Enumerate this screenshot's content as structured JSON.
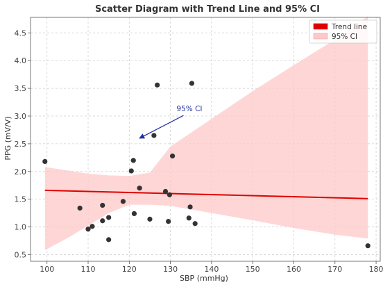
{
  "chart_data": {
    "type": "scatter",
    "title": "Scatter Diagram with Trend Line and 95% CI",
    "xlabel": "SBP (mmHg)",
    "ylabel": "PPG (mV/V)",
    "xlim": [
      96,
      181
    ],
    "ylim": [
      0.38,
      4.78
    ],
    "xticks": [
      100,
      110,
      120,
      130,
      140,
      150,
      160,
      170,
      180
    ],
    "yticks": [
      0.5,
      1.0,
      1.5,
      2.0,
      2.5,
      3.0,
      3.5,
      4.0,
      4.5
    ],
    "grid": true,
    "legend": {
      "placement": "top-right",
      "entries": [
        {
          "label": "Trend line",
          "color": "#e00000"
        },
        {
          "label": "95% CI",
          "color": "#ffc8c8"
        }
      ]
    },
    "points": {
      "color": "#333333",
      "x": [
        99.5,
        108,
        110,
        111,
        113.5,
        113.5,
        115,
        115,
        118.5,
        120.5,
        121,
        121.2,
        122.5,
        125,
        126,
        126.8,
        128.8,
        129.5,
        129.8,
        130.5,
        134.5,
        134.8,
        135.2,
        136,
        178
      ],
      "y": [
        2.18,
        1.34,
        0.96,
        1.01,
        1.11,
        1.39,
        1.17,
        0.77,
        1.46,
        2.01,
        2.2,
        1.24,
        1.7,
        1.14,
        2.65,
        3.56,
        1.64,
        1.1,
        1.58,
        2.28,
        1.16,
        1.36,
        3.59,
        1.06,
        0.66
      ]
    },
    "trend_line": {
      "color": "#e00000",
      "x": [
        99.5,
        178
      ],
      "y": [
        1.66,
        1.51
      ]
    },
    "confidence_band": {
      "label": "95% CI",
      "color": "#ffc8c8",
      "x": [
        99.5,
        105,
        110,
        115,
        120,
        125,
        130,
        140,
        150,
        160,
        170,
        178
      ],
      "upper": [
        2.08,
        2.02,
        1.96,
        1.93,
        1.92,
        1.98,
        2.45,
        2.95,
        3.45,
        3.92,
        4.38,
        4.8
      ],
      "lower": [
        0.58,
        0.8,
        1.02,
        1.25,
        1.4,
        1.4,
        1.38,
        1.25,
        1.12,
        0.98,
        0.86,
        0.79
      ]
    },
    "annotation": {
      "text": "95% CI",
      "arrow_to": [
        122.5,
        2.6
      ],
      "text_at": [
        132.5,
        3.06
      ],
      "color": "#2030a0"
    }
  }
}
